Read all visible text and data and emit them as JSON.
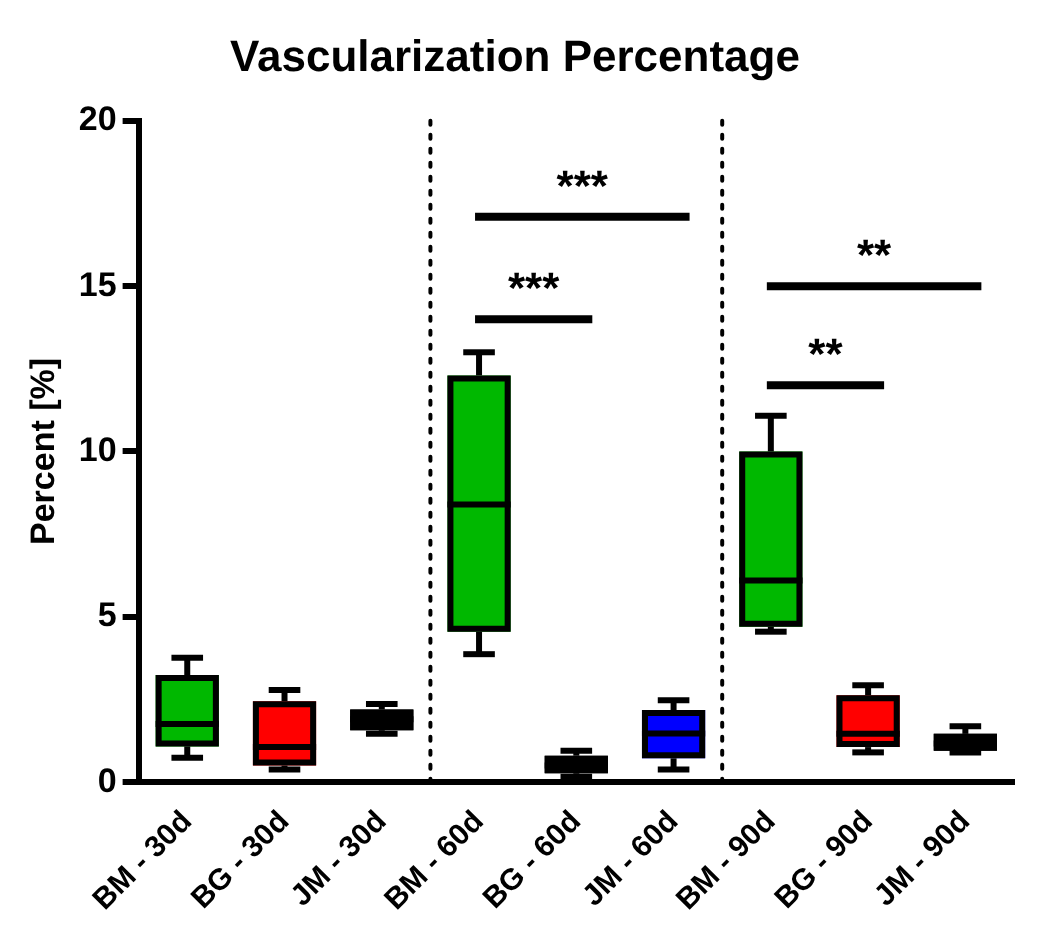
{
  "chart_data": {
    "type": "box",
    "title": "Vascularization Percentage",
    "ylabel": "Percent [%]",
    "categories": [
      "BM - 30d",
      "BG - 30d",
      "JM - 30d",
      "BM - 60d",
      "BG - 60d",
      "JM - 60d",
      "BM - 90d",
      "BG - 90d",
      "JM - 90d"
    ],
    "boxes": [
      {
        "low": 0.74,
        "q1": 1.08,
        "median": 1.76,
        "q3": 3.24,
        "high": 3.76
      },
      {
        "low": 0.38,
        "q1": 0.5,
        "median": 1.06,
        "q3": 2.45,
        "high": 2.79
      },
      {
        "low": 1.46,
        "q1": 1.57,
        "median": 1.9,
        "q3": 2.2,
        "high": 2.36
      },
      {
        "low": 3.87,
        "q1": 4.55,
        "median": 8.4,
        "q3": 12.3,
        "high": 13.0
      },
      {
        "low": 0.16,
        "q1": 0.27,
        "median": 0.5,
        "q3": 0.8,
        "high": 0.95
      },
      {
        "low": 0.38,
        "q1": 0.72,
        "median": 1.47,
        "q3": 2.18,
        "high": 2.48
      },
      {
        "low": 4.55,
        "q1": 4.7,
        "median": 6.1,
        "q3": 10.0,
        "high": 11.08
      },
      {
        "low": 0.9,
        "q1": 1.06,
        "median": 1.46,
        "q3": 2.63,
        "high": 2.93
      },
      {
        "low": 0.9,
        "q1": 0.95,
        "median": 1.17,
        "q3": 1.46,
        "high": 1.69
      }
    ],
    "colors": [
      "#00b800",
      "#ff0000",
      "#000000",
      "#00b800",
      "#000000",
      "#0000ff",
      "#00b800",
      "#ff0000",
      "#000000"
    ],
    "ylim": [
      0,
      20
    ],
    "yticks": [
      0,
      5,
      10,
      15,
      20
    ],
    "grid": false,
    "legend": false,
    "annotations": [
      "***",
      "***",
      "**",
      "**"
    ]
  }
}
